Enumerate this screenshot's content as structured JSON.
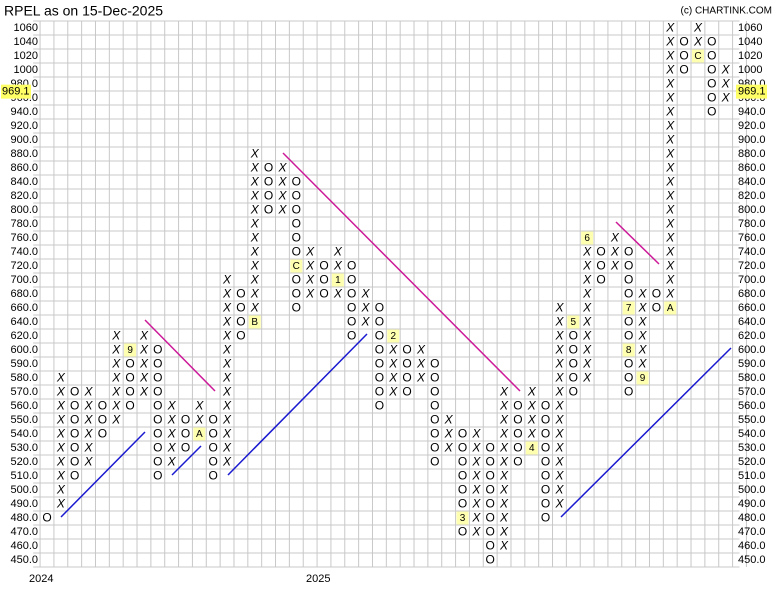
{
  "chart_data": {
    "type": "pnf",
    "title": "RPEL as on 15-Dec-2025",
    "source": "(c) CHARTINK.COM",
    "x_labels": [
      {
        "label": "2024",
        "column": 0
      },
      {
        "label": "2025",
        "column": 20
      }
    ],
    "current_price": {
      "value": 969.1,
      "label": "969.1"
    },
    "x_color": "#2e8b2e",
    "o_color": "#e8322c",
    "grid": true,
    "yticks": [
      1060,
      1040,
      1020,
      1000,
      {
        "value": 980,
        "label": "980.0"
      },
      {
        "value": 960,
        "label": "960.0"
      },
      {
        "value": 940,
        "label": "940.0"
      },
      {
        "value": 920,
        "label": "920.0"
      },
      {
        "value": 900,
        "label": "900.0"
      },
      {
        "value": 880,
        "label": "880.0"
      },
      {
        "value": 860,
        "label": "860.0"
      },
      {
        "value": 840,
        "label": "840.0"
      },
      {
        "value": 820,
        "label": "820.0"
      },
      {
        "value": 800,
        "label": "800.0"
      },
      {
        "value": 780,
        "label": "780.0"
      },
      {
        "value": 760,
        "label": "760.0"
      },
      {
        "value": 740,
        "label": "740.0"
      },
      {
        "value": 720,
        "label": "720.0"
      },
      {
        "value": 700,
        "label": "700.0"
      },
      {
        "value": 680,
        "label": "680.0"
      },
      {
        "value": 660,
        "label": "660.0"
      },
      {
        "value": 640,
        "label": "640.0"
      },
      {
        "value": 620,
        "label": "620.0"
      },
      {
        "value": 600,
        "label": "600.0"
      },
      {
        "value": 590,
        "label": "590.0"
      },
      {
        "value": 580,
        "label": "580.0"
      },
      {
        "value": 570,
        "label": "570.0"
      },
      {
        "value": 560,
        "label": "560.0"
      },
      {
        "value": 550,
        "label": "550.0"
      },
      {
        "value": 540,
        "label": "540.0"
      },
      {
        "value": 530,
        "label": "530.0"
      },
      {
        "value": 520,
        "label": "520.0"
      },
      {
        "value": 510,
        "label": "510.0"
      },
      {
        "value": 500,
        "label": "500.0"
      },
      {
        "value": 490,
        "label": "490.0"
      },
      {
        "value": 480,
        "label": "480.0"
      },
      {
        "value": 470,
        "label": "470.0"
      },
      {
        "value": 460,
        "label": "460.0"
      },
      {
        "value": 450,
        "label": "450.0"
      }
    ],
    "columns": [
      {
        "kind": "O",
        "high": 480,
        "low": 480
      },
      {
        "kind": "X",
        "high": 580,
        "low": 490
      },
      {
        "kind": "O",
        "high": 570,
        "low": 510
      },
      {
        "kind": "X",
        "high": 570,
        "low": 520
      },
      {
        "kind": "O",
        "high": 560,
        "low": 540
      },
      {
        "kind": "X",
        "high": 620,
        "low": 550
      },
      {
        "kind": "O",
        "high": 610,
        "low": 560,
        "markers": [
          {
            "value": 600,
            "label": "9"
          }
        ]
      },
      {
        "kind": "X",
        "high": 620,
        "low": 570
      },
      {
        "kind": "O",
        "high": 610,
        "low": 510
      },
      {
        "kind": "X",
        "high": 560,
        "low": 520
      },
      {
        "kind": "O",
        "high": 550,
        "low": 530
      },
      {
        "kind": "X",
        "high": 560,
        "low": 540,
        "markers": [
          {
            "value": 540,
            "label": "A"
          }
        ]
      },
      {
        "kind": "O",
        "high": 550,
        "low": 510
      },
      {
        "kind": "X",
        "high": 700,
        "low": 520
      },
      {
        "kind": "O",
        "high": 690,
        "low": 620
      },
      {
        "kind": "X",
        "high": 880,
        "low": 640,
        "markers": [
          {
            "value": 640,
            "label": "B"
          }
        ]
      },
      {
        "kind": "O",
        "high": 860,
        "low": 800
      },
      {
        "kind": "X",
        "high": 860,
        "low": 800
      },
      {
        "kind": "O",
        "high": 840,
        "low": 660,
        "markers": [
          {
            "value": 720,
            "label": "C"
          }
        ]
      },
      {
        "kind": "X",
        "high": 740,
        "low": 680
      },
      {
        "kind": "O",
        "high": 720,
        "low": 680
      },
      {
        "kind": "X",
        "high": 740,
        "low": 680,
        "markers": [
          {
            "value": 700,
            "label": "1"
          }
        ]
      },
      {
        "kind": "O",
        "high": 720,
        "low": 620
      },
      {
        "kind": "X",
        "high": 680,
        "low": 640
      },
      {
        "kind": "O",
        "high": 660,
        "low": 560
      },
      {
        "kind": "X",
        "high": 620,
        "low": 570,
        "markers": [
          {
            "value": 620,
            "label": "2"
          }
        ]
      },
      {
        "kind": "O",
        "high": 600,
        "low": 570
      },
      {
        "kind": "X",
        "high": 600,
        "low": 580
      },
      {
        "kind": "O",
        "high": 590,
        "low": 520
      },
      {
        "kind": "X",
        "high": 550,
        "low": 530
      },
      {
        "kind": "O",
        "high": 540,
        "low": 470,
        "markers": [
          {
            "value": 480,
            "label": "3"
          }
        ]
      },
      {
        "kind": "X",
        "high": 540,
        "low": 470
      },
      {
        "kind": "O",
        "high": 530,
        "low": 450
      },
      {
        "kind": "X",
        "high": 570,
        "low": 460
      },
      {
        "kind": "O",
        "high": 560,
        "low": 520
      },
      {
        "kind": "X",
        "high": 570,
        "low": 530,
        "markers": [
          {
            "value": 530,
            "label": "4"
          }
        ]
      },
      {
        "kind": "O",
        "high": 560,
        "low": 480
      },
      {
        "kind": "X",
        "high": 660,
        "low": 490
      },
      {
        "kind": "O",
        "high": 640,
        "low": 570,
        "markers": [
          {
            "value": 640,
            "label": "5"
          }
        ]
      },
      {
        "kind": "X",
        "high": 760,
        "low": 580,
        "markers": [
          {
            "value": 760,
            "label": "6"
          }
        ]
      },
      {
        "kind": "O",
        "high": 740,
        "low": 700
      },
      {
        "kind": "X",
        "high": 760,
        "low": 720
      },
      {
        "kind": "O",
        "high": 740,
        "low": 570,
        "markers": [
          {
            "value": 660,
            "label": "7"
          },
          {
            "value": 600,
            "label": "8"
          }
        ]
      },
      {
        "kind": "X",
        "high": 680,
        "low": 580,
        "markers": [
          {
            "value": 580,
            "label": "9"
          }
        ]
      },
      {
        "kind": "O",
        "high": 680,
        "low": 660
      },
      {
        "kind": "X",
        "high": 1060,
        "low": 660,
        "markers": [
          {
            "value": 660,
            "label": "A"
          }
        ]
      },
      {
        "kind": "O",
        "high": 1040,
        "low": 1000
      },
      {
        "kind": "X",
        "high": 1060,
        "low": 1020,
        "markers": [
          {
            "value": 1020,
            "label": "C"
          }
        ]
      },
      {
        "kind": "O",
        "high": 1040,
        "low": 940
      },
      {
        "kind": "X",
        "high": 1000,
        "low": 960
      }
    ]
  }
}
